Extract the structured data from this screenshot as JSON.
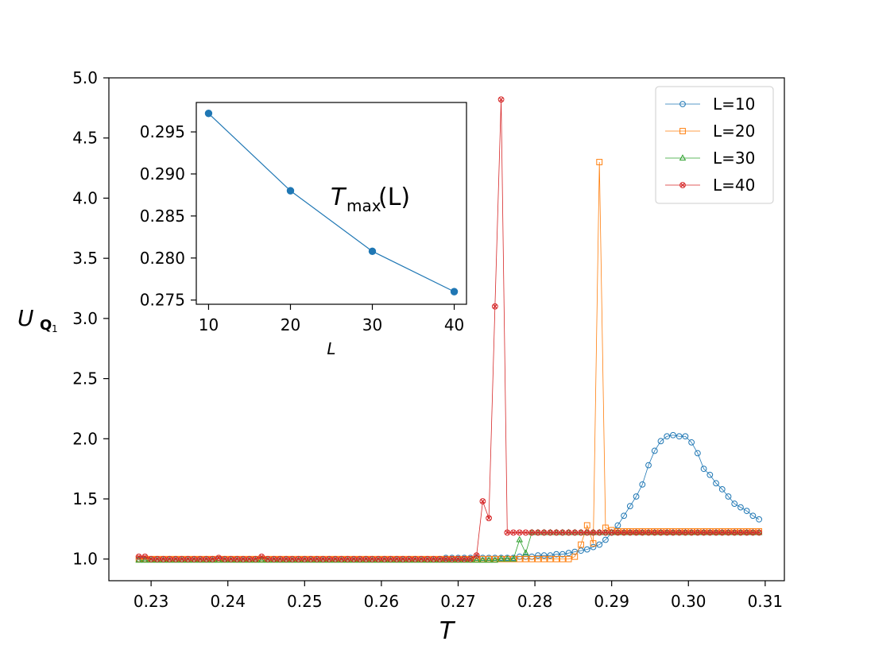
{
  "chart_data": [
    {
      "type": "line",
      "title": "",
      "xlabel": "T",
      "ylabel": "U",
      "ylabel_sub": "Q",
      "ylabel_subsub": "1",
      "xlim": [
        0.2245,
        0.3125
      ],
      "ylim": [
        0.82,
        5.0
      ],
      "xticks": [
        0.23,
        0.24,
        0.25,
        0.26,
        0.27,
        0.28,
        0.29,
        0.3,
        0.31
      ],
      "xtick_labels": [
        "0.23",
        "0.24",
        "0.25",
        "0.26",
        "0.27",
        "0.28",
        "0.29",
        "0.30",
        "0.31"
      ],
      "yticks": [
        1.0,
        1.5,
        2.0,
        2.5,
        3.0,
        3.5,
        4.0,
        4.5,
        5.0
      ],
      "ytick_labels": [
        "1.0",
        "1.5",
        "2.0",
        "2.5",
        "3.0",
        "3.5",
        "4.0",
        "4.5",
        "5.0"
      ],
      "grid": false,
      "legend_position": "top-right",
      "x": [
        0.2284,
        0.2292,
        0.23,
        0.2308,
        0.2316,
        0.2324,
        0.2332,
        0.234,
        0.2348,
        0.2356,
        0.2364,
        0.2372,
        0.238,
        0.2388,
        0.2396,
        0.2404,
        0.2412,
        0.242,
        0.2428,
        0.2436,
        0.2444,
        0.2452,
        0.246,
        0.2468,
        0.2476,
        0.2484,
        0.2492,
        0.25,
        0.2508,
        0.2516,
        0.2524,
        0.2532,
        0.254,
        0.2548,
        0.2556,
        0.2564,
        0.2572,
        0.258,
        0.2588,
        0.2596,
        0.2604,
        0.2612,
        0.262,
        0.2628,
        0.2636,
        0.2644,
        0.2652,
        0.266,
        0.2668,
        0.2676,
        0.2684,
        0.2692,
        0.27,
        0.2708,
        0.2716,
        0.2724,
        0.2732,
        0.274,
        0.2748,
        0.2756,
        0.2764,
        0.2772,
        0.278,
        0.2788,
        0.2796,
        0.2804,
        0.2812,
        0.282,
        0.2828,
        0.2836,
        0.2844,
        0.2852,
        0.286,
        0.2868,
        0.2876,
        0.2884,
        0.2892,
        0.29,
        0.2908,
        0.2916,
        0.2924,
        0.2932,
        0.294,
        0.2948,
        0.2956,
        0.2964,
        0.2972,
        0.298,
        0.2988,
        0.2996,
        0.3004,
        0.3012,
        0.302,
        0.3028,
        0.3036,
        0.3044,
        0.3052,
        0.306,
        0.3068,
        0.3076,
        0.3084,
        0.3092
      ],
      "series": [
        {
          "name": "L=10",
          "color": "#1f77b4",
          "marker": "circle",
          "values": [
            1.0,
            1.0,
            1.0,
            1.0,
            1.0,
            1.0,
            1.0,
            1.0,
            1.0,
            1.0,
            1.0,
            1.0,
            1.0,
            1.0,
            1.0,
            1.0,
            1.0,
            1.0,
            1.0,
            1.0,
            1.0,
            1.0,
            1.0,
            1.0,
            1.0,
            1.0,
            1.0,
            1.0,
            1.0,
            1.0,
            1.0,
            1.0,
            1.0,
            1.0,
            1.0,
            1.0,
            1.0,
            1.0,
            1.0,
            1.0,
            1.0,
            1.0,
            1.0,
            1.0,
            1.0,
            1.0,
            1.0,
            1.0,
            1.0,
            1.0,
            1.01,
            1.01,
            1.01,
            1.01,
            1.01,
            1.01,
            1.01,
            1.01,
            1.01,
            1.01,
            1.01,
            1.01,
            1.02,
            1.02,
            1.02,
            1.03,
            1.03,
            1.03,
            1.04,
            1.04,
            1.05,
            1.06,
            1.07,
            1.08,
            1.1,
            1.12,
            1.16,
            1.22,
            1.28,
            1.36,
            1.44,
            1.52,
            1.62,
            1.78,
            1.9,
            1.98,
            2.02,
            2.03,
            2.02,
            2.02,
            1.97,
            1.88,
            1.75,
            1.7,
            1.63,
            1.58,
            1.52,
            1.46,
            1.43,
            1.4,
            1.36,
            1.33
          ]
        },
        {
          "name": "L=20",
          "color": "#ff7f0e",
          "marker": "square",
          "values": [
            1.0,
            1.0,
            1.0,
            1.0,
            1.0,
            1.0,
            1.0,
            1.0,
            1.0,
            1.0,
            1.0,
            1.0,
            1.0,
            1.0,
            1.0,
            1.0,
            1.0,
            1.0,
            1.0,
            1.0,
            1.0,
            1.0,
            1.0,
            1.0,
            1.0,
            1.0,
            1.0,
            1.0,
            1.0,
            1.0,
            1.0,
            1.0,
            1.0,
            1.0,
            1.0,
            1.0,
            1.0,
            1.0,
            1.0,
            1.0,
            1.0,
            1.0,
            1.0,
            1.0,
            1.0,
            1.0,
            1.0,
            1.0,
            1.0,
            1.0,
            1.0,
            1.0,
            1.0,
            1.0,
            1.0,
            1.0,
            1.0,
            1.0,
            1.0,
            1.0,
            1.0,
            1.0,
            1.0,
            1.0,
            1.0,
            1.0,
            1.0,
            1.0,
            1.0,
            1.0,
            1.0,
            1.02,
            1.12,
            1.28,
            1.13,
            4.3,
            1.26,
            1.24,
            1.23,
            1.23,
            1.23,
            1.23,
            1.23,
            1.23,
            1.23,
            1.23,
            1.23,
            1.23,
            1.23,
            1.23,
            1.23,
            1.23,
            1.23,
            1.23,
            1.23,
            1.23,
            1.23,
            1.23,
            1.23,
            1.23,
            1.23,
            1.23
          ]
        },
        {
          "name": "L=30",
          "color": "#2ca02c",
          "marker": "triangle",
          "values": [
            0.99,
            0.99,
            0.99,
            0.99,
            0.99,
            0.99,
            0.99,
            0.99,
            0.99,
            0.99,
            0.99,
            0.99,
            0.99,
            0.99,
            0.99,
            0.99,
            0.99,
            0.99,
            0.99,
            0.99,
            0.99,
            0.99,
            0.99,
            0.99,
            0.99,
            0.99,
            0.99,
            0.99,
            0.99,
            0.99,
            0.99,
            0.99,
            0.99,
            0.99,
            0.99,
            0.99,
            0.99,
            0.99,
            0.99,
            0.99,
            0.99,
            0.99,
            0.99,
            0.99,
            0.99,
            0.99,
            0.99,
            0.99,
            0.99,
            0.99,
            0.99,
            0.99,
            0.99,
            0.99,
            0.99,
            0.99,
            0.99,
            0.99,
            0.99,
            1.0,
            1.0,
            1.0,
            1.16,
            1.05,
            1.22,
            1.22,
            1.22,
            1.22,
            1.22,
            1.22,
            1.22,
            1.22,
            1.22,
            1.22,
            1.22,
            1.22,
            1.22,
            1.22,
            1.22,
            1.22,
            1.22,
            1.22,
            1.22,
            1.22,
            1.22,
            1.22,
            1.22,
            1.22,
            1.22,
            1.22,
            1.22,
            1.22,
            1.22,
            1.22,
            1.22,
            1.22,
            1.22,
            1.22,
            1.22,
            1.22,
            1.22,
            1.22
          ]
        },
        {
          "name": "L=40",
          "color": "#d62728",
          "marker": "x",
          "values": [
            1.02,
            1.02,
            1.0,
            1.0,
            1.0,
            1.0,
            1.0,
            1.0,
            1.0,
            1.0,
            1.0,
            1.0,
            1.0,
            1.01,
            1.0,
            1.0,
            1.0,
            1.0,
            1.0,
            1.0,
            1.02,
            1.0,
            1.0,
            1.0,
            1.0,
            1.0,
            1.0,
            1.0,
            1.0,
            1.0,
            1.0,
            1.0,
            1.0,
            1.0,
            1.0,
            1.0,
            1.0,
            1.0,
            1.0,
            1.0,
            1.0,
            1.0,
            1.0,
            1.0,
            1.0,
            1.0,
            1.0,
            1.0,
            1.0,
            1.0,
            1.0,
            1.0,
            1.0,
            1.0,
            1.0,
            1.03,
            1.48,
            1.34,
            3.1,
            4.82,
            1.22,
            1.22,
            1.22,
            1.22,
            1.22,
            1.22,
            1.22,
            1.22,
            1.22,
            1.22,
            1.22,
            1.22,
            1.22,
            1.22,
            1.22,
            1.22,
            1.22,
            1.22,
            1.22,
            1.22,
            1.22,
            1.22,
            1.22,
            1.22,
            1.22,
            1.22,
            1.22,
            1.22,
            1.22,
            1.22,
            1.22,
            1.22,
            1.22,
            1.22,
            1.22,
            1.22,
            1.22,
            1.22,
            1.22,
            1.22,
            1.22,
            1.22
          ]
        }
      ]
    },
    {
      "type": "line",
      "title": "",
      "inset": true,
      "xlabel": "L",
      "ylabel": "",
      "annotation": {
        "base": "T",
        "sub": "max",
        "arg": "(L)"
      },
      "xlim": [
        8.5,
        41.5
      ],
      "ylim": [
        0.2745,
        0.2985
      ],
      "xticks": [
        10,
        20,
        30,
        40
      ],
      "xtick_labels": [
        "10",
        "20",
        "30",
        "40"
      ],
      "yticks": [
        0.275,
        0.28,
        0.285,
        0.29,
        0.295
      ],
      "ytick_labels": [
        "0.275",
        "0.280",
        "0.285",
        "0.290",
        "0.295"
      ],
      "grid": false,
      "x": [
        10,
        20,
        30,
        40
      ],
      "series": [
        {
          "color": "#1f77b4",
          "marker": "dot",
          "values": [
            0.2972,
            0.288,
            0.2808,
            0.276
          ]
        }
      ]
    }
  ]
}
